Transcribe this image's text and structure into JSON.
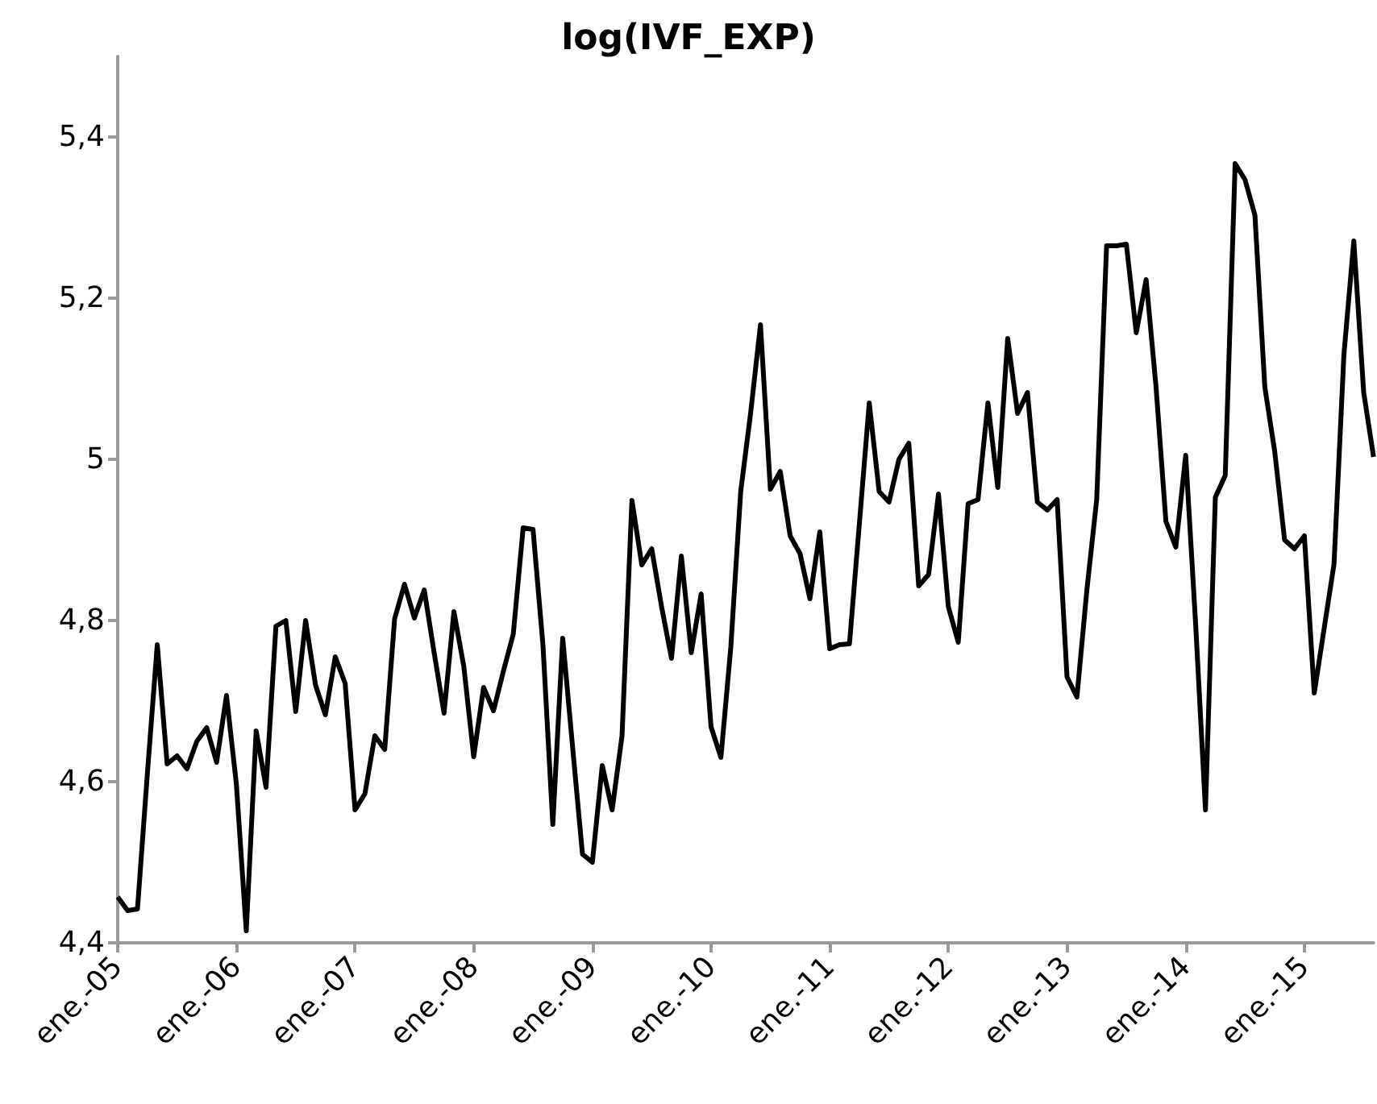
{
  "chart_data": {
    "type": "line",
    "title": "log(IVF_EXP)",
    "categories": [
      "ene.-05",
      null,
      null,
      null,
      null,
      null,
      null,
      null,
      null,
      null,
      null,
      null,
      "ene.-06",
      null,
      null,
      null,
      null,
      null,
      null,
      null,
      null,
      null,
      null,
      null,
      "ene.-07",
      null,
      null,
      null,
      null,
      null,
      null,
      null,
      null,
      null,
      null,
      null,
      "ene.-08",
      null,
      null,
      null,
      null,
      null,
      null,
      null,
      null,
      null,
      null,
      null,
      "ene.-09",
      null,
      null,
      null,
      null,
      null,
      null,
      null,
      null,
      null,
      null,
      null,
      "ene.-10",
      null,
      null,
      null,
      null,
      null,
      null,
      null,
      null,
      null,
      null,
      null,
      "ene.-11",
      null,
      null,
      null,
      null,
      null,
      null,
      null,
      null,
      null,
      null,
      null,
      "ene.-12",
      null,
      null,
      null,
      null,
      null,
      null,
      null,
      null,
      null,
      null,
      null,
      "ene.-13",
      null,
      null,
      null,
      null,
      null,
      null,
      null,
      null,
      null,
      null,
      null,
      "ene.-14",
      null,
      null,
      null,
      null,
      null,
      null,
      null,
      null,
      null,
      null,
      null,
      "ene.-15",
      null,
      null,
      null,
      null,
      null,
      null,
      null
    ],
    "series": [
      {
        "color": "#000000",
        "values": [
          4.457,
          4.44,
          4.442,
          4.61,
          4.77,
          4.622,
          4.632,
          4.616,
          4.65,
          4.667,
          4.624,
          4.707,
          4.597,
          4.415,
          4.663,
          4.593,
          4.793,
          4.8,
          4.687,
          4.8,
          4.72,
          4.683,
          4.755,
          4.722,
          4.565,
          4.585,
          4.657,
          4.64,
          4.802,
          4.845,
          4.803,
          4.838,
          4.76,
          4.685,
          4.811,
          4.743,
          4.631,
          4.717,
          4.688,
          4.737,
          4.783,
          4.915,
          4.913,
          4.77,
          4.547,
          4.778,
          4.643,
          4.51,
          4.5,
          4.62,
          4.565,
          4.657,
          4.949,
          4.869,
          4.889,
          4.817,
          4.753,
          4.88,
          4.76,
          4.833,
          4.668,
          4.63,
          4.767,
          4.96,
          5.057,
          5.167,
          4.963,
          4.985,
          4.905,
          4.883,
          4.827,
          4.91,
          4.765,
          4.77,
          4.771,
          4.92,
          5.07,
          4.96,
          4.947,
          5.0,
          5.02,
          4.843,
          4.857,
          4.957,
          4.817,
          4.773,
          4.945,
          4.95,
          5.07,
          4.965,
          5.15,
          5.057,
          5.083,
          4.947,
          4.937,
          4.95,
          4.73,
          4.705,
          4.837,
          4.95,
          5.265,
          5.265,
          5.267,
          5.157,
          5.223,
          5.09,
          4.923,
          4.891,
          5.005,
          4.797,
          4.565,
          4.953,
          4.98,
          5.367,
          5.347,
          5.303,
          5.09,
          5.01,
          4.9,
          4.889,
          4.905,
          4.71,
          4.79,
          4.87,
          5.13,
          5.271,
          5.083,
          5.003
        ]
      }
    ],
    "ylim": [
      4.4,
      5.5
    ],
    "yticks": [
      {
        "value": 4.4,
        "label": "4,4"
      },
      {
        "value": 4.6,
        "label": "4,6"
      },
      {
        "value": 4.8,
        "label": "4,8"
      },
      {
        "value": 5,
        "label": "5"
      },
      {
        "value": 5.2,
        "label": "5,2"
      },
      {
        "value": 5.4,
        "label": "5,4"
      }
    ],
    "grid": false,
    "marker": "none",
    "line_style": "solid"
  }
}
